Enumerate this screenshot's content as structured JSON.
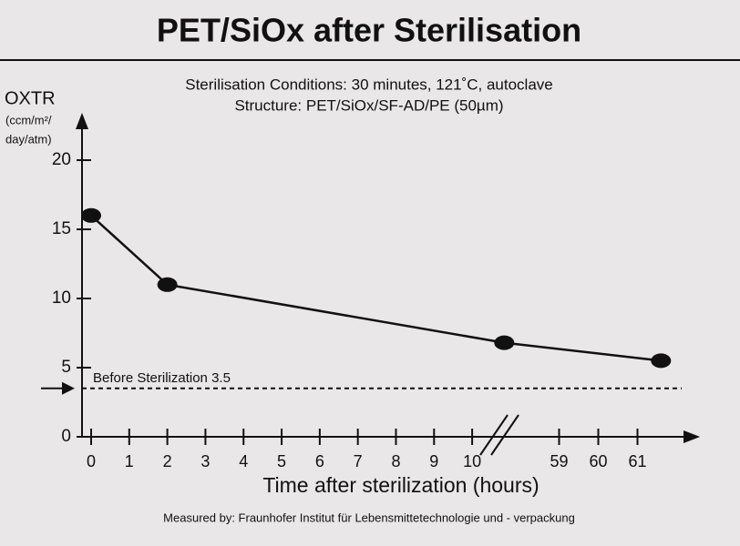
{
  "chart_data": {
    "type": "line",
    "title": "PET/SiOx after Sterilisation",
    "subtitle": [
      "Sterilisation Conditions:  30 minutes, 121˚C, autoclave",
      "Structure: PET/SiOx/SF-AD/PE (50µm)"
    ],
    "y_label": [
      "OXTR",
      "(ccm/m²/",
      "day/atm)"
    ],
    "x_label": "Time after sterilization (hours)",
    "footnote": "Measured by: Fraunhofer Institut für Lebensmittetechnologie und - verpackung",
    "x": [
      0,
      2,
      57.6,
      61.6
    ],
    "series": [
      {
        "color": "#111111",
        "values": [
          16,
          11,
          6.8,
          5.5
        ]
      }
    ],
    "xlim": [
      0,
      62.5
    ],
    "x_break": [
      10.5,
      57.5
    ],
    "xticks": [
      0,
      1,
      2,
      3,
      4,
      5,
      6,
      7,
      8,
      9,
      10,
      59,
      60,
      61
    ],
    "ylim": [
      0,
      23
    ],
    "yticks": [
      0,
      5,
      10,
      15,
      20
    ],
    "reference_line": {
      "value": 3.5,
      "label": "Before Sterilization 3.5"
    }
  }
}
